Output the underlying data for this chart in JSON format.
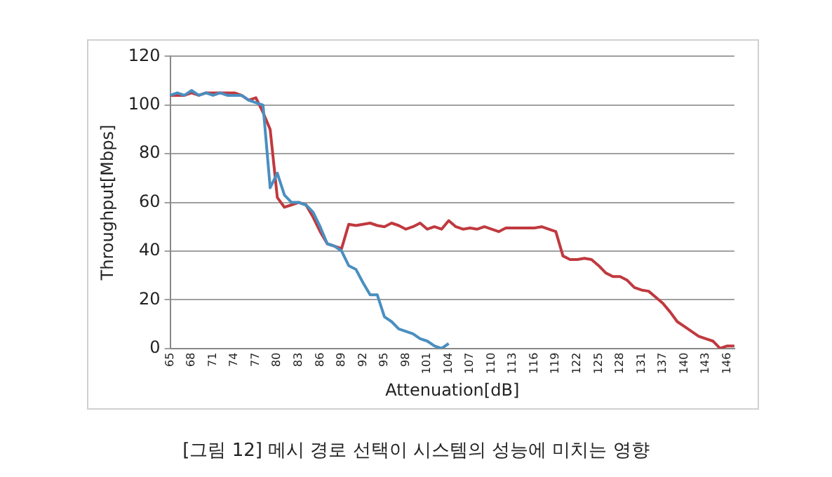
{
  "chart_data": {
    "type": "line",
    "xlabel": "Attenuation[dB]",
    "ylabel": "Throughput[Mbps]",
    "categories": [
      "65",
      null,
      null,
      "68",
      null,
      null,
      "71",
      null,
      null,
      "74",
      null,
      null,
      "77",
      null,
      null,
      "80",
      null,
      null,
      "83",
      null,
      null,
      "86",
      null,
      null,
      "89",
      null,
      null,
      "92",
      null,
      null,
      "95",
      null,
      null,
      "98",
      null,
      null,
      "101",
      null,
      null,
      "104",
      null,
      null,
      "107",
      null,
      null,
      "110",
      null,
      null,
      "113",
      null,
      null,
      "116",
      null,
      null,
      "119",
      null,
      null,
      "122",
      null,
      null,
      "125",
      null,
      null,
      "128",
      null,
      null,
      "131",
      null,
      null,
      "137",
      null,
      null,
      "140",
      null,
      null,
      "143",
      null,
      null,
      "146",
      null
    ],
    "series": [
      {
        "color": "#4a8fc0",
        "values": [
          104,
          105,
          104,
          106,
          104,
          105,
          104,
          105,
          104,
          104,
          104,
          102,
          101,
          100,
          66,
          72,
          63,
          60,
          60,
          59,
          56,
          50,
          43,
          42,
          40,
          34,
          32.5,
          27,
          22,
          22,
          13,
          11,
          8,
          7,
          6,
          4,
          3,
          1,
          0,
          2,
          null,
          null,
          null,
          null,
          null,
          null,
          null,
          null,
          null,
          null,
          null,
          null,
          null,
          null,
          null,
          null,
          null,
          null,
          null,
          null,
          null,
          null,
          null,
          null,
          null,
          null,
          null,
          null,
          null,
          null,
          null,
          null,
          null,
          null,
          null,
          null,
          null,
          null,
          null,
          null
        ]
      },
      {
        "color": "#c0393f",
        "values": [
          104,
          104,
          104,
          105,
          104,
          105,
          105,
          105,
          105,
          105,
          104,
          102,
          103,
          97,
          90,
          62,
          58,
          59,
          60,
          59,
          54,
          48,
          43,
          42,
          41,
          51,
          50.5,
          51,
          51.5,
          50.5,
          50,
          51.5,
          50.5,
          49,
          50,
          51.5,
          49,
          50,
          49,
          52.5,
          50,
          49,
          49.5,
          49,
          50,
          49,
          48,
          49.5,
          49.5,
          49.5,
          49.5,
          49.5,
          50,
          49,
          48,
          38,
          36.5,
          36.5,
          37,
          36.5,
          34,
          31,
          29.5,
          29.5,
          28,
          25,
          24,
          23.5,
          21,
          18.5,
          15,
          11,
          9,
          7,
          5,
          4,
          3,
          0,
          1,
          1
        ]
      }
    ],
    "ylim": [
      0,
      120
    ],
    "yticks": [
      0,
      20,
      40,
      60,
      80,
      100,
      120
    ],
    "grid": "y",
    "legend": false,
    "annotations": [
      "[그림 12] 메시 경로 선택이 시스템의 성능에 미치는 영향"
    ]
  }
}
